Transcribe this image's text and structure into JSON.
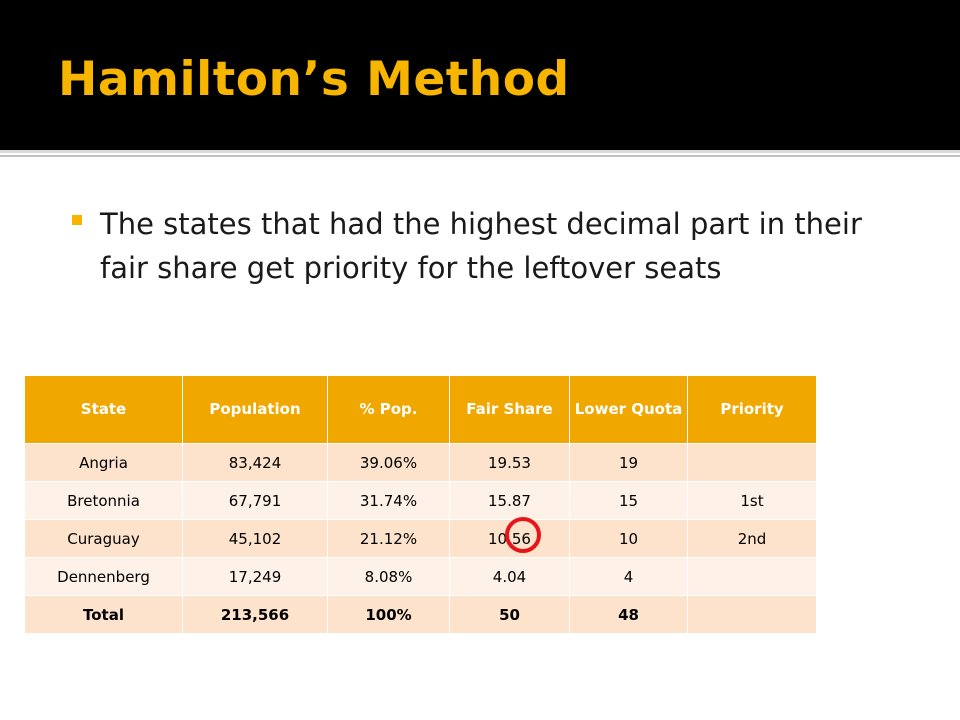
{
  "slide": {
    "title": "Hamilton’s Method",
    "bullet": "The states that had the highest decimal part in their fair share get priority for the leftover seats"
  },
  "table": {
    "headers": [
      "State",
      "Population",
      "% Pop.",
      "Fair Share",
      "Lower Quota",
      "Priority"
    ],
    "rows": [
      [
        "Angria",
        "83,424",
        "39.06%",
        "19.53",
        "19",
        ""
      ],
      [
        "Bretonnia",
        "67,791",
        "31.74%",
        "15.87",
        "15",
        "1st"
      ],
      [
        "Curaguay",
        "45,102",
        "21.12%",
        "10.56",
        "10",
        "2nd"
      ],
      [
        "Dennenberg",
        "17,249",
        "8.08%",
        "4.04",
        "4",
        ""
      ]
    ],
    "total": [
      "Total",
      "213,566",
      "100%",
      "50",
      "48",
      ""
    ]
  },
  "colors": {
    "title": "#f7b500",
    "header_bg": "#f0a800",
    "row_odd": "#fde3cc",
    "row_even": "#fef1e7",
    "highlight_circle": "#e8141a"
  }
}
